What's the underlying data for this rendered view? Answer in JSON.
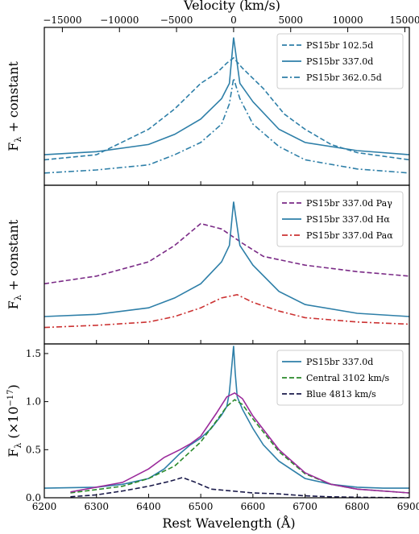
{
  "chart_data": [
    {
      "type": "line",
      "top_axis": {
        "label": "Velocity (km/s)",
        "ticks": [
          -15000,
          -10000,
          -5000,
          0,
          5000,
          10000,
          15000
        ],
        "tick_labels": [
          "−15000",
          "−10000",
          "−5000",
          "0",
          "5000",
          "10000",
          "15000"
        ]
      },
      "ylabel": "F_λ + constant",
      "xlim": [
        6200,
        6900
      ],
      "legend_position": "top-right",
      "series": [
        {
          "name": "PS15br 102.5d",
          "color": "#2e7fa8",
          "style": "dashed",
          "x": [
            6200,
            6300,
            6400,
            6450,
            6500,
            6530,
            6550,
            6563,
            6580,
            6620,
            6660,
            6700,
            6750,
            6800,
            6900
          ],
          "y": [
            0.25,
            0.3,
            0.55,
            0.75,
            1.0,
            1.1,
            1.2,
            1.25,
            1.15,
            0.95,
            0.7,
            0.55,
            0.4,
            0.32,
            0.25
          ]
        },
        {
          "name": "PS15br 337.0d",
          "color": "#2e7fa8",
          "style": "solid",
          "x": [
            6200,
            6300,
            6400,
            6450,
            6500,
            6540,
            6555,
            6563,
            6575,
            6600,
            6650,
            6700,
            6800,
            6900
          ],
          "y": [
            0.3,
            0.33,
            0.4,
            0.5,
            0.65,
            0.85,
            1.0,
            1.45,
            1.0,
            0.82,
            0.55,
            0.42,
            0.34,
            0.3
          ]
        },
        {
          "name": "PS15br 362.0.5d",
          "color": "#2e7fa8",
          "style": "dashdot",
          "x": [
            6200,
            6300,
            6400,
            6450,
            6500,
            6540,
            6555,
            6563,
            6575,
            6600,
            6650,
            6700,
            6800,
            6900
          ],
          "y": [
            0.12,
            0.15,
            0.2,
            0.3,
            0.42,
            0.6,
            0.8,
            1.05,
            0.85,
            0.6,
            0.38,
            0.25,
            0.16,
            0.12
          ]
        }
      ]
    },
    {
      "type": "line",
      "ylabel": "F_λ + constant",
      "xlim": [
        6200,
        6900
      ],
      "legend_position": "top-right",
      "series": [
        {
          "name": "PS15br 337.0d Paγ",
          "color": "#7a2a86",
          "style": "dashed",
          "x": [
            6200,
            6300,
            6400,
            6450,
            6500,
            6540,
            6580,
            6620,
            6700,
            6800,
            6900
          ],
          "y": [
            0.55,
            0.62,
            0.75,
            0.9,
            1.1,
            1.05,
            0.92,
            0.8,
            0.72,
            0.66,
            0.62
          ]
        },
        {
          "name": "PS15br 337.0d Hα",
          "color": "#2e7fa8",
          "style": "solid",
          "x": [
            6200,
            6300,
            6400,
            6450,
            6500,
            6540,
            6555,
            6563,
            6575,
            6600,
            6650,
            6700,
            6800,
            6900
          ],
          "y": [
            0.25,
            0.27,
            0.33,
            0.42,
            0.55,
            0.75,
            0.9,
            1.3,
            0.9,
            0.72,
            0.48,
            0.36,
            0.28,
            0.25
          ]
        },
        {
          "name": "PS15br 337.0d Paα",
          "color": "#cc3333",
          "style": "dashdot",
          "x": [
            6200,
            6300,
            6400,
            6450,
            6500,
            6540,
            6570,
            6600,
            6650,
            6700,
            6800,
            6900
          ],
          "y": [
            0.15,
            0.17,
            0.2,
            0.25,
            0.33,
            0.42,
            0.45,
            0.38,
            0.3,
            0.24,
            0.2,
            0.18
          ]
        }
      ]
    },
    {
      "type": "line",
      "xlabel": "Rest Wavelength (Å)",
      "ylabel": "F_λ (×10^−17)",
      "xlim": [
        6200,
        6900
      ],
      "ylim": [
        0,
        1.6
      ],
      "xticks": [
        6200,
        6300,
        6400,
        6500,
        6600,
        6700,
        6800,
        6900
      ],
      "yticks": [
        0.0,
        0.5,
        1.0,
        1.5
      ],
      "ytick_labels": [
        "0.0",
        "0.5",
        "1.0",
        "1.5"
      ],
      "legend_position": "top-right",
      "series": [
        {
          "name": "PS15br 337.0d",
          "color": "#2e7fa8",
          "style": "solid",
          "x": [
            6200,
            6300,
            6350,
            6400,
            6430,
            6460,
            6480,
            6500,
            6520,
            6540,
            6550,
            6555,
            6560,
            6563,
            6566,
            6570,
            6580,
            6600,
            6620,
            6650,
            6700,
            6750,
            6800,
            6850,
            6900
          ],
          "y": [
            0.1,
            0.11,
            0.14,
            0.2,
            0.3,
            0.46,
            0.55,
            0.62,
            0.72,
            0.86,
            0.95,
            1.1,
            1.4,
            1.58,
            1.3,
            1.05,
            0.92,
            0.72,
            0.55,
            0.38,
            0.2,
            0.14,
            0.11,
            0.1,
            0.1
          ]
        },
        {
          "name": "Central 3102 km/s",
          "color": "#2a8a2a",
          "style": "dashed",
          "x": [
            6250,
            6350,
            6400,
            6450,
            6500,
            6530,
            6550,
            6565,
            6580,
            6600,
            6650,
            6700,
            6750,
            6800,
            6900
          ],
          "y": [
            0.05,
            0.12,
            0.2,
            0.33,
            0.58,
            0.8,
            0.95,
            1.02,
            0.97,
            0.82,
            0.48,
            0.25,
            0.14,
            0.09,
            0.05
          ]
        },
        {
          "name": "Blue 4813 km/s",
          "color": "#1a1a4a",
          "style": "dashed",
          "x": [
            6250,
            6300,
            6350,
            6400,
            6440,
            6465,
            6490,
            6520,
            6560,
            6600,
            6650,
            6700,
            6750,
            6800,
            6900
          ],
          "y": [
            0.01,
            0.03,
            0.07,
            0.12,
            0.17,
            0.21,
            0.16,
            0.09,
            0.07,
            0.05,
            0.04,
            0.02,
            0.01,
            0.005,
            0.0
          ]
        },
        {
          "name": "",
          "color": "#9b2a9b",
          "style": "solid",
          "x": [
            6250,
            6350,
            6400,
            6430,
            6460,
            6480,
            6500,
            6530,
            6550,
            6565,
            6580,
            6600,
            6650,
            6700,
            6750,
            6800,
            6900
          ],
          "y": [
            0.06,
            0.16,
            0.3,
            0.42,
            0.5,
            0.56,
            0.64,
            0.88,
            1.05,
            1.09,
            1.03,
            0.85,
            0.5,
            0.26,
            0.14,
            0.09,
            0.05
          ]
        }
      ]
    }
  ]
}
